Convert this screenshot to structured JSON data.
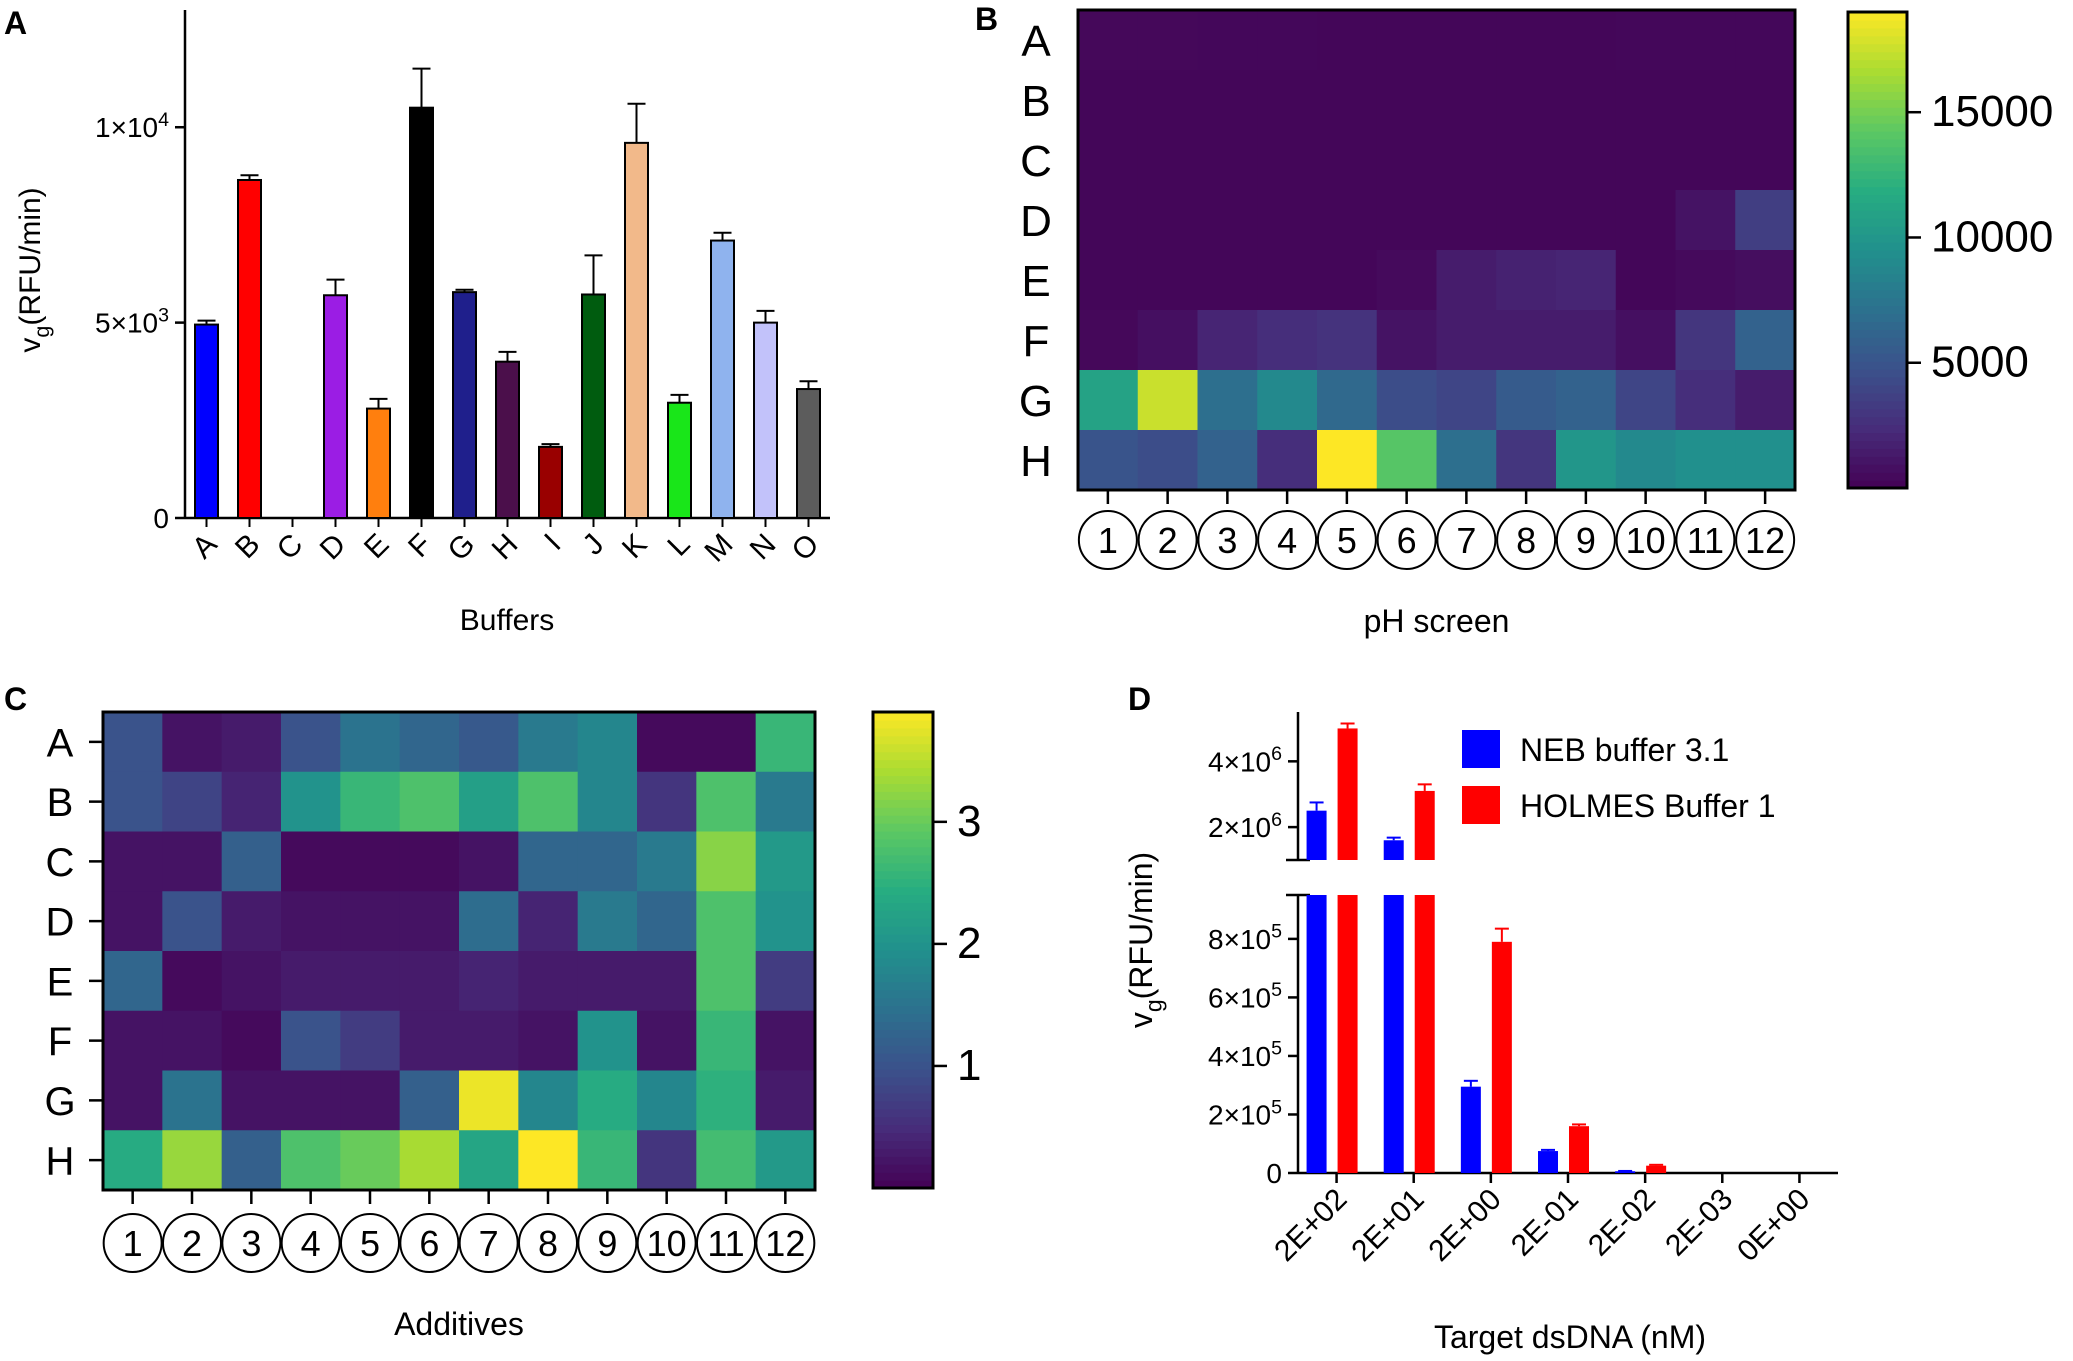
{
  "chart_data": [
    {
      "panel": "A",
      "type": "bar",
      "title": "",
      "xlabel": "Buffers",
      "ylabel": "v",
      "ylabel_sub": "g",
      "ylabel_rest": "(RFU/min)",
      "ylim": [
        0,
        13000
      ],
      "yticks": [
        {
          "value": 0,
          "mant": "0",
          "exp": ""
        },
        {
          "value": 5000,
          "mant": "5×10",
          "exp": "3"
        },
        {
          "value": 10000,
          "mant": "1×10",
          "exp": "4"
        }
      ],
      "categories": [
        "A",
        "B",
        "C",
        "D",
        "E",
        "F",
        "G",
        "H",
        "I",
        "J",
        "K",
        "L",
        "M",
        "N",
        "O"
      ],
      "values": [
        4950,
        8650,
        0,
        5700,
        2800,
        10500,
        5780,
        4000,
        1820,
        5720,
        9600,
        2950,
        7100,
        5000,
        3300
      ],
      "errors": [
        100,
        120,
        0,
        400,
        250,
        1000,
        60,
        250,
        70,
        1000,
        1000,
        200,
        200,
        300,
        200
      ],
      "colors": [
        "#0000ff",
        "#ff0000",
        "#ffffff",
        "#9b1de4",
        "#ff7f0e",
        "#000000",
        "#1f1f8c",
        "#4b0f4b",
        "#990000",
        "#005c0f",
        "#f2b98a",
        "#19e619",
        "#8fb3ee",
        "#c2c2fa",
        "#5c5c5c"
      ]
    },
    {
      "panel": "B",
      "type": "heatmap",
      "title": "",
      "xlabel": "pH screen",
      "rows": [
        "A",
        "B",
        "C",
        "D",
        "E",
        "F",
        "G",
        "H"
      ],
      "cols": [
        "1",
        "2",
        "3",
        "4",
        "5",
        "6",
        "7",
        "8",
        "9",
        "10",
        "11",
        "12"
      ],
      "vmin": 0,
      "vmax": 19000,
      "colorbar_ticks": [
        {
          "value": 5000,
          "label": "5000"
        },
        {
          "value": 10000,
          "label": "10000"
        },
        {
          "value": 15000,
          "label": "15000"
        }
      ],
      "values": [
        [
          400,
          400,
          350,
          350,
          300,
          300,
          300,
          300,
          300,
          350,
          350,
          350
        ],
        [
          300,
          300,
          300,
          300,
          300,
          300,
          300,
          300,
          300,
          300,
          300,
          300
        ],
        [
          300,
          300,
          300,
          300,
          300,
          300,
          300,
          300,
          300,
          300,
          300,
          300
        ],
        [
          300,
          300,
          300,
          300,
          300,
          300,
          300,
          300,
          300,
          300,
          1000,
          3500
        ],
        [
          300,
          300,
          300,
          300,
          300,
          500,
          1500,
          1800,
          2000,
          300,
          500,
          700
        ],
        [
          400,
          800,
          2000,
          2500,
          2800,
          1000,
          1500,
          1500,
          1500,
          800,
          3000,
          6000
        ],
        [
          11000,
          17500,
          7000,
          9000,
          6500,
          4500,
          4000,
          5500,
          6000,
          4000,
          2500,
          1500
        ],
        [
          5000,
          4500,
          6000,
          2500,
          19000,
          14000,
          7000,
          3000,
          10000,
          9000,
          9500,
          9500
        ]
      ]
    },
    {
      "panel": "C",
      "type": "heatmap",
      "title": "",
      "xlabel": "Additives",
      "rows": [
        "A",
        "B",
        "C",
        "D",
        "E",
        "F",
        "G",
        "H"
      ],
      "cols": [
        "1",
        "2",
        "3",
        "4",
        "5",
        "6",
        "7",
        "8",
        "9",
        "10",
        "11",
        "12"
      ],
      "vmin": 0,
      "vmax": 3.9,
      "colorbar_ticks": [
        {
          "value": 1,
          "label": "1"
        },
        {
          "value": 2,
          "label": "2"
        },
        {
          "value": 3,
          "label": "3"
        }
      ],
      "values": [
        [
          1.0,
          0.2,
          0.3,
          1.0,
          1.5,
          1.3,
          1.1,
          1.6,
          1.8,
          0.1,
          0.1,
          2.6
        ],
        [
          1.0,
          0.8,
          0.4,
          2.0,
          2.6,
          2.8,
          2.2,
          2.8,
          1.8,
          0.6,
          2.8,
          1.6
        ],
        [
          0.2,
          0.2,
          1.2,
          0.1,
          0.1,
          0.1,
          0.2,
          1.3,
          1.3,
          1.6,
          3.2,
          2.1
        ],
        [
          0.2,
          1.0,
          0.3,
          0.2,
          0.2,
          0.2,
          1.4,
          0.4,
          1.6,
          1.3,
          2.8,
          2.0
        ],
        [
          1.3,
          0.1,
          0.2,
          0.3,
          0.3,
          0.3,
          0.4,
          0.3,
          0.3,
          0.3,
          2.8,
          0.7
        ],
        [
          0.2,
          0.2,
          0.1,
          1.0,
          0.7,
          0.3,
          0.3,
          0.2,
          2.0,
          0.2,
          2.6,
          0.2
        ],
        [
          0.2,
          1.5,
          0.2,
          0.2,
          0.2,
          1.2,
          3.8,
          1.8,
          2.4,
          1.8,
          2.5,
          0.3
        ],
        [
          2.4,
          3.3,
          1.2,
          2.8,
          3.0,
          3.4,
          2.3,
          3.9,
          2.6,
          0.6,
          2.7,
          2.1
        ]
      ]
    },
    {
      "panel": "D",
      "type": "bar",
      "title": "",
      "xlabel": "Target dsDNA (nM)",
      "ylabel": "v",
      "ylabel_sub": "g",
      "ylabel_rest": "(RFU/min)",
      "categories": [
        "2E+02",
        "2E+01",
        "2E+00",
        "2E-01",
        "2E-02",
        "2E-03",
        "0E+00"
      ],
      "series": [
        {
          "name": "NEB buffer 3.1",
          "color": "#0000ff",
          "values": [
            2500000,
            1600000,
            295000,
            75000,
            6000,
            0,
            0
          ],
          "errors": [
            250000,
            80000,
            20000,
            4000,
            1000,
            0,
            0
          ]
        },
        {
          "name": "HOLMES Buffer 1",
          "color": "#ff0000",
          "values": [
            5000000,
            3100000,
            790000,
            160000,
            25000,
            0,
            0
          ],
          "errors": [
            150000,
            200000,
            45000,
            6000,
            3000,
            0,
            0
          ]
        }
      ],
      "lower_ylim": [
        0,
        950000
      ],
      "upper_ylim": [
        1000000,
        5500000
      ],
      "lower_yticks": [
        {
          "value": 0,
          "mant": "0",
          "exp": ""
        },
        {
          "value": 200000,
          "mant": "2×10",
          "exp": "5"
        },
        {
          "value": 400000,
          "mant": "4×10",
          "exp": "5"
        },
        {
          "value": 600000,
          "mant": "6×10",
          "exp": "5"
        },
        {
          "value": 800000,
          "mant": "8×10",
          "exp": "5"
        }
      ],
      "upper_yticks": [
        {
          "value": 2000000,
          "mant": "2×10",
          "exp": "6"
        },
        {
          "value": 4000000,
          "mant": "4×10",
          "exp": "6"
        }
      ],
      "legend_position": "top-right"
    }
  ]
}
